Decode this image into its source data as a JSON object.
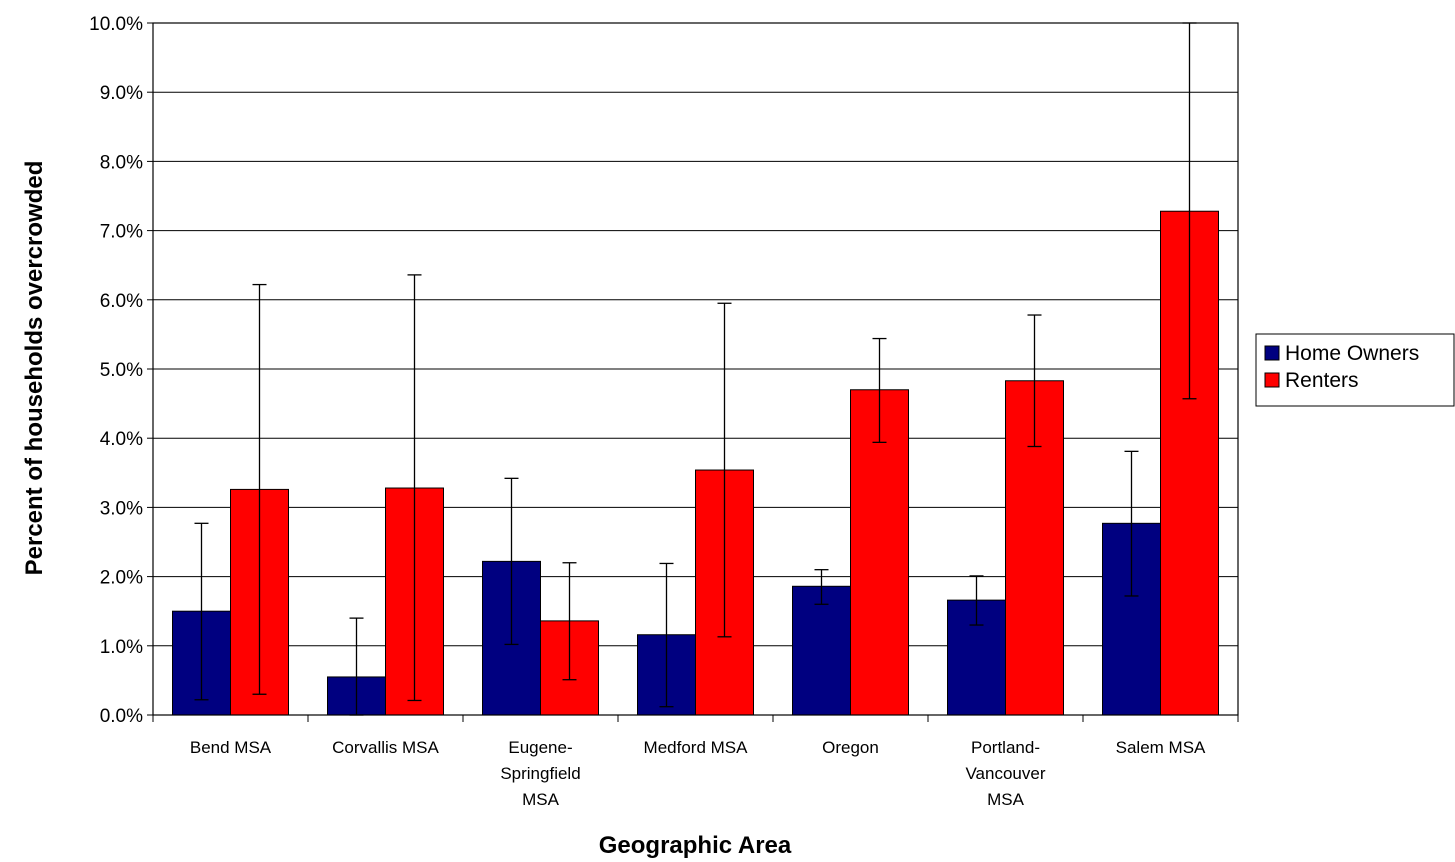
{
  "chart_data": {
    "type": "bar",
    "title": "",
    "xlabel": "Geographic Area",
    "ylabel": "Percent of households overcrowded",
    "ylim": [
      0,
      10
    ],
    "ytick_step": 1,
    "ytick_labels": [
      "0.0%",
      "1.0%",
      "2.0%",
      "3.0%",
      "4.0%",
      "5.0%",
      "6.0%",
      "7.0%",
      "8.0%",
      "9.0%",
      "10.0%"
    ],
    "grid": true,
    "legend_position": "right",
    "categories": [
      [
        "Bend MSA"
      ],
      [
        "Corvallis MSA"
      ],
      [
        "Eugene-",
        "Springfield",
        "MSA"
      ],
      [
        "Medford MSA"
      ],
      [
        "Oregon"
      ],
      [
        "Portland-",
        "Vancouver",
        "MSA"
      ],
      [
        "Salem MSA"
      ]
    ],
    "series": [
      {
        "name": "Home Owners",
        "color": "#000080",
        "values": [
          1.5,
          0.55,
          2.22,
          1.16,
          1.86,
          1.66,
          2.77
        ],
        "error_low": [
          0.22,
          0.0,
          1.02,
          0.12,
          1.6,
          1.3,
          1.72
        ],
        "error_high": [
          2.77,
          1.4,
          3.42,
          2.19,
          2.1,
          2.01,
          3.81
        ]
      },
      {
        "name": "Renters",
        "color": "#ff0000",
        "values": [
          3.26,
          3.28,
          1.36,
          3.54,
          4.7,
          4.83,
          7.28
        ],
        "error_low": [
          0.3,
          0.21,
          0.51,
          1.13,
          3.94,
          3.88,
          4.57
        ],
        "error_high": [
          6.22,
          6.36,
          2.2,
          5.95,
          5.44,
          5.78,
          10.0
        ]
      }
    ]
  }
}
